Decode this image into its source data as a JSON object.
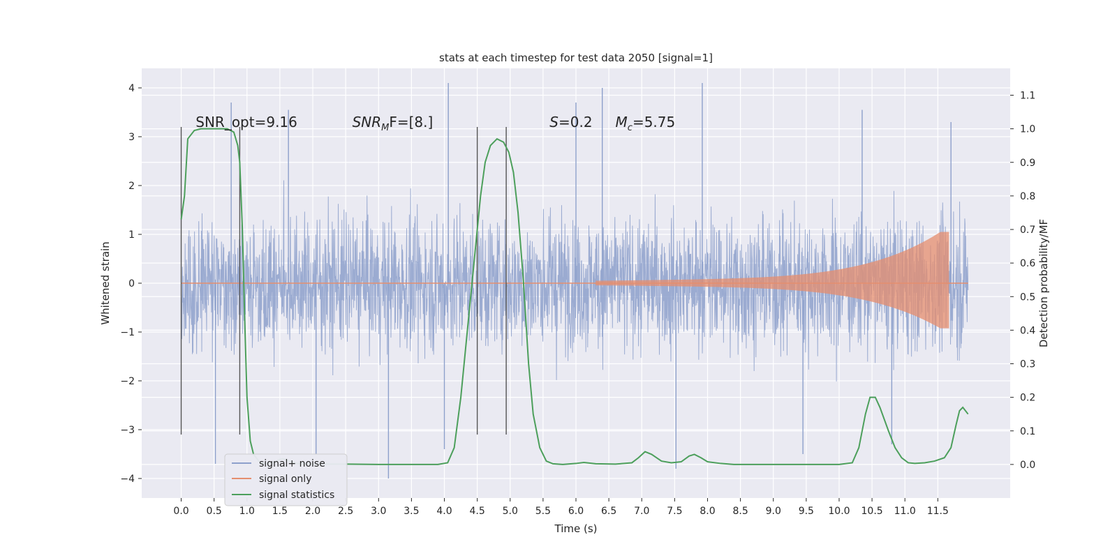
{
  "chart_data": {
    "type": "line",
    "title": "stats at each timestep for test data 2050 [signal=1]",
    "xlabel": "Time (s)",
    "ylabel": "Whitened strain",
    "ylabel_right": "Detection probability/MF",
    "xlim": [
      -0.6,
      12.6
    ],
    "ylim": [
      -4.4,
      4.4
    ],
    "ylim_right": [
      -0.1,
      1.18
    ],
    "x_ticks": [
      "0.0",
      "0.5",
      "1.0",
      "1.5",
      "2.0",
      "2.5",
      "3.0",
      "3.5",
      "4.0",
      "4.5",
      "5.0",
      "5.5",
      "6.0",
      "6.5",
      "7.0",
      "7.5",
      "8.0",
      "8.5",
      "9.0",
      "9.5",
      "10.0",
      "10.5",
      "11.0",
      "11.5"
    ],
    "y_ticks": [
      "−4",
      "−3",
      "−2",
      "−1",
      "0",
      "1",
      "2",
      "3",
      "4"
    ],
    "y_ticks_right": [
      "0.0",
      "0.1",
      "0.2",
      "0.3",
      "0.4",
      "0.5",
      "0.6",
      "0.7",
      "0.8",
      "0.9",
      "1.0",
      "1.1"
    ],
    "grid": true,
    "legend_position": "lower-left",
    "annotations": [
      {
        "x": 0.22,
        "y": 3.2,
        "text": "SNR_opt=9.16"
      },
      {
        "x": 2.6,
        "y": 3.2,
        "text": "SNR",
        "sub": "M",
        "suffix": "F=[8.]",
        "italic": true
      },
      {
        "x": 5.6,
        "y": 3.2,
        "text": "S",
        "suffix": "=0.2",
        "italic": true
      },
      {
        "x": 6.6,
        "y": 3.2,
        "text": "M",
        "sub": "c",
        "suffix": "=5.75",
        "italic": true
      }
    ],
    "vlines": [
      0.0,
      0.89,
      4.5,
      4.94
    ],
    "vline_ymin": -3.1,
    "vline_ymax": 3.2,
    "series": [
      {
        "name": "signal+ noise",
        "color": "#8da0cb",
        "axis": "left",
        "x_range": [
          0.0,
          11.96
        ],
        "envelope_typical": [
          -2.0,
          2.0
        ],
        "peaks": [
          [
            0.76,
            3.7
          ],
          [
            1.63,
            3.55
          ],
          [
            4.06,
            4.1
          ],
          [
            6.0,
            3.7
          ],
          [
            6.4,
            4.0
          ],
          [
            7.92,
            4.1
          ],
          [
            10.35,
            3.55
          ],
          [
            11.7,
            3.3
          ]
        ],
        "troughs": [
          [
            0.52,
            -3.7
          ],
          [
            2.05,
            -3.5
          ],
          [
            3.15,
            -4.0
          ],
          [
            4.0,
            -3.4
          ],
          [
            7.52,
            -3.8
          ],
          [
            9.45,
            -3.5
          ],
          [
            10.8,
            -3.3
          ]
        ]
      },
      {
        "name": "signal only",
        "color": "#e58e6e",
        "axis": "left",
        "x_range": [
          0.0,
          11.96
        ],
        "chirp_start": 6.3,
        "chirp_peak_time": 11.67,
        "chirp_peak_amp": 1.05
      },
      {
        "name": "signal statistics",
        "color": "#4c9f5b",
        "axis": "right",
        "points": [
          [
            0.0,
            0.73
          ],
          [
            0.05,
            0.8
          ],
          [
            0.1,
            0.97
          ],
          [
            0.2,
            0.995
          ],
          [
            0.3,
            1.0
          ],
          [
            0.5,
            1.0
          ],
          [
            0.7,
            1.0
          ],
          [
            0.8,
            0.99
          ],
          [
            0.86,
            0.95
          ],
          [
            0.89,
            0.9
          ],
          [
            0.93,
            0.7
          ],
          [
            0.97,
            0.4
          ],
          [
            1.0,
            0.2
          ],
          [
            1.05,
            0.07
          ],
          [
            1.1,
            0.03
          ],
          [
            1.2,
            0.005
          ],
          [
            1.3,
            0.002
          ],
          [
            1.4,
            0.005
          ],
          [
            1.5,
            0.015
          ],
          [
            1.55,
            0.017
          ],
          [
            1.65,
            0.01
          ],
          [
            1.75,
            0.003
          ],
          [
            2.0,
            0.001
          ],
          [
            2.5,
            0.001
          ],
          [
            3.0,
            0.0
          ],
          [
            3.5,
            0.0
          ],
          [
            3.9,
            0.0
          ],
          [
            4.05,
            0.005
          ],
          [
            4.15,
            0.05
          ],
          [
            4.25,
            0.2
          ],
          [
            4.35,
            0.4
          ],
          [
            4.45,
            0.6
          ],
          [
            4.55,
            0.8
          ],
          [
            4.62,
            0.9
          ],
          [
            4.7,
            0.95
          ],
          [
            4.8,
            0.97
          ],
          [
            4.9,
            0.96
          ],
          [
            4.98,
            0.93
          ],
          [
            5.05,
            0.87
          ],
          [
            5.12,
            0.75
          ],
          [
            5.2,
            0.55
          ],
          [
            5.28,
            0.3
          ],
          [
            5.35,
            0.15
          ],
          [
            5.45,
            0.05
          ],
          [
            5.55,
            0.01
          ],
          [
            5.65,
            0.002
          ],
          [
            5.8,
            0.0
          ],
          [
            6.0,
            0.003
          ],
          [
            6.12,
            0.006
          ],
          [
            6.3,
            0.002
          ],
          [
            6.6,
            0.001
          ],
          [
            6.85,
            0.005
          ],
          [
            6.95,
            0.02
          ],
          [
            7.05,
            0.038
          ],
          [
            7.15,
            0.03
          ],
          [
            7.3,
            0.01
          ],
          [
            7.45,
            0.005
          ],
          [
            7.6,
            0.008
          ],
          [
            7.72,
            0.025
          ],
          [
            7.8,
            0.03
          ],
          [
            7.9,
            0.02
          ],
          [
            8.0,
            0.008
          ],
          [
            8.2,
            0.003
          ],
          [
            8.4,
            0.0
          ],
          [
            9.0,
            0.0
          ],
          [
            9.5,
            0.0
          ],
          [
            10.0,
            0.0
          ],
          [
            10.2,
            0.005
          ],
          [
            10.3,
            0.05
          ],
          [
            10.4,
            0.15
          ],
          [
            10.47,
            0.2
          ],
          [
            10.55,
            0.2
          ],
          [
            10.62,
            0.17
          ],
          [
            10.75,
            0.1
          ],
          [
            10.85,
            0.05
          ],
          [
            10.95,
            0.02
          ],
          [
            11.05,
            0.005
          ],
          [
            11.15,
            0.003
          ],
          [
            11.3,
            0.005
          ],
          [
            11.45,
            0.01
          ],
          [
            11.6,
            0.02
          ],
          [
            11.7,
            0.05
          ],
          [
            11.78,
            0.12
          ],
          [
            11.83,
            0.16
          ],
          [
            11.88,
            0.17
          ],
          [
            11.92,
            0.16
          ],
          [
            11.96,
            0.15
          ]
        ]
      }
    ]
  },
  "colors": {
    "plot_background": "#eaeaf2",
    "grid": "#ffffff",
    "vline": "#555555"
  }
}
